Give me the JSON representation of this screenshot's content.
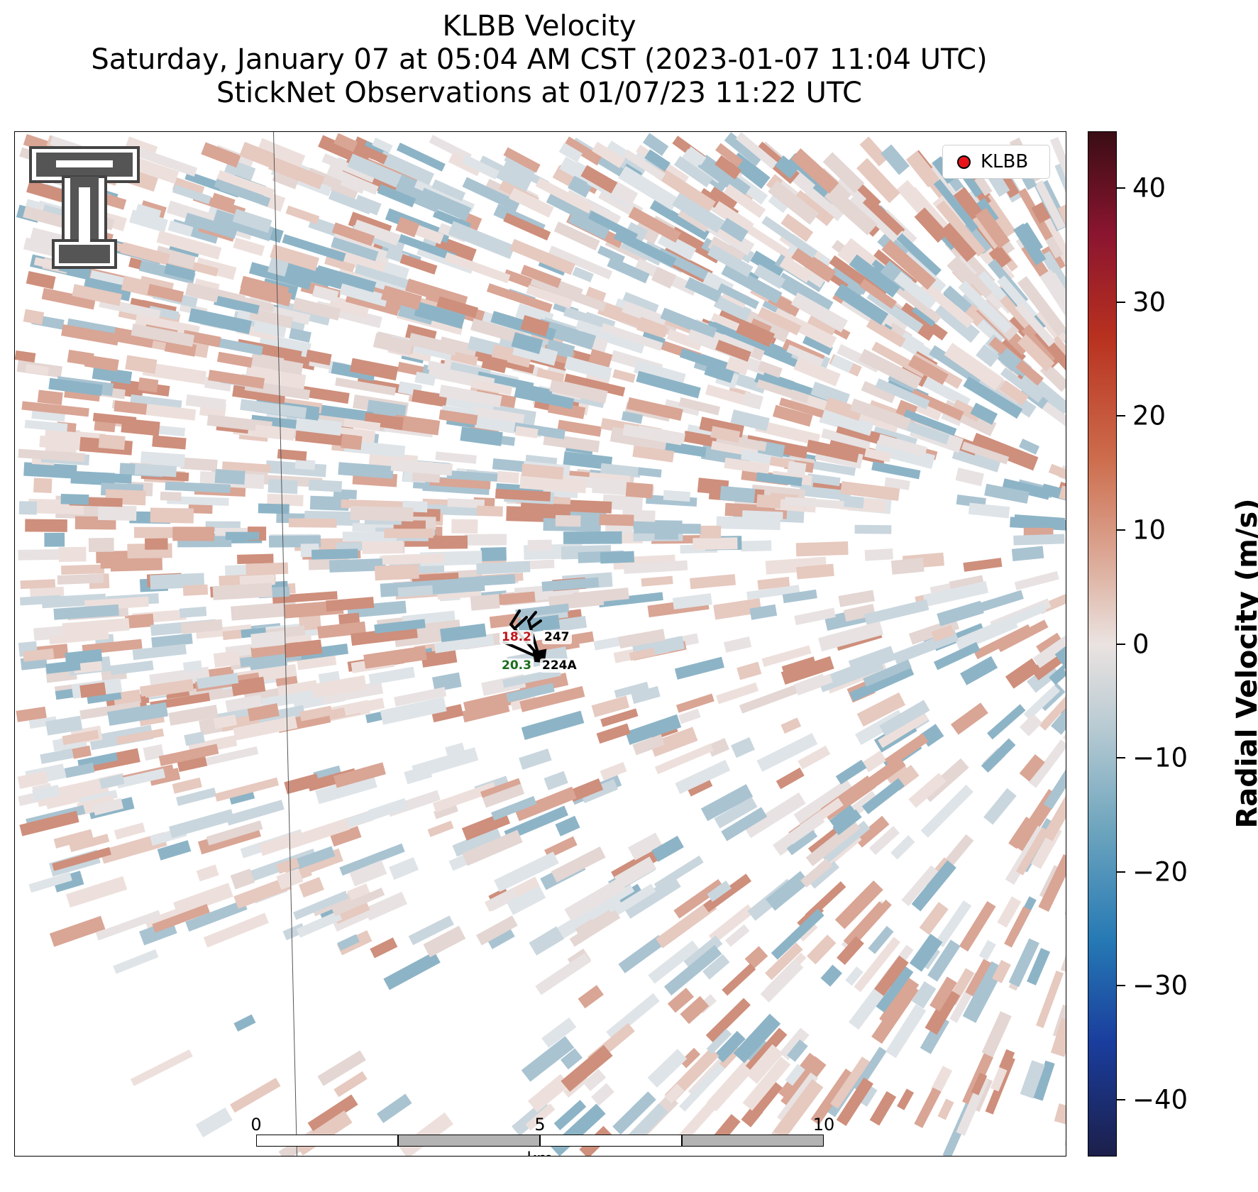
{
  "title": {
    "line1": "KLBB Velocity",
    "line2": "Saturday, January 07 at 05:04 AM CST (2023-01-07 11:04 UTC)",
    "line3": "StickNet Observations at 01/07/23 11:22 UTC"
  },
  "legend": {
    "label": "KLBB",
    "marker_color": "#e8141a"
  },
  "stations": [
    {
      "id": "247",
      "value": "18.2",
      "value_color": "#c0161c"
    },
    {
      "id": "224A",
      "value": "20.3",
      "value_color": "#1a6e1a"
    }
  ],
  "scalebar": {
    "ticks": [
      "0",
      "5",
      "10"
    ],
    "unit": "km"
  },
  "colorbar": {
    "title": "Radial Velocity (m/s)",
    "range": [
      -45,
      45
    ],
    "ticks": [
      {
        "value": 40,
        "label": "40"
      },
      {
        "value": 30,
        "label": "30"
      },
      {
        "value": 20,
        "label": "20"
      },
      {
        "value": 10,
        "label": "10"
      },
      {
        "value": 0,
        "label": "0"
      },
      {
        "value": -10,
        "label": "−10"
      },
      {
        "value": -20,
        "label": "−20"
      },
      {
        "value": -30,
        "label": "−30"
      },
      {
        "value": -40,
        "label": "−40"
      }
    ]
  },
  "logo": {
    "icon": "texas-tech-double-t-logo"
  }
}
